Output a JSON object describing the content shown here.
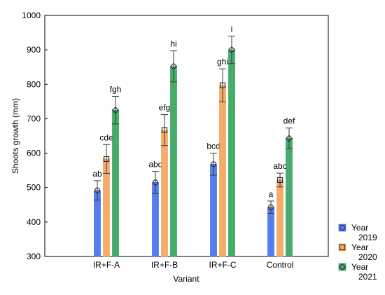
{
  "chart_data": {
    "type": "bar",
    "xlabel": "Variant",
    "ylabel": "Shoots growth (mm)",
    "ylim": [
      300,
      1000
    ],
    "yticks": [
      300,
      400,
      500,
      600,
      700,
      800,
      900,
      1000
    ],
    "grid": false,
    "legend_position": "right-bottom",
    "categories": [
      "IR+F-A",
      "IR+F-B",
      "IR+F-C",
      "Control"
    ],
    "series": [
      {
        "name": "Year 2019",
        "legend_lines": [
          "Year",
          "2019"
        ],
        "color": "#2f62ec",
        "marker": "circle",
        "values": [
          492,
          515,
          568,
          443
        ],
        "errors": [
          28,
          32,
          32,
          18
        ],
        "labels": [
          "ab",
          "abc",
          "bcd",
          "a"
        ]
      },
      {
        "name": "Year 2020",
        "legend_lines": [
          "Year",
          "2020"
        ],
        "color": "#f29a4a",
        "marker": "square",
        "values": [
          583,
          667,
          797,
          522
        ],
        "errors": [
          42,
          45,
          48,
          20
        ],
        "labels": [
          "cde",
          "efg",
          "ghi",
          "abc"
        ]
      },
      {
        "name": "Year 2021",
        "legend_lines": [
          "Year",
          "2021"
        ],
        "color": "#1f9a4a",
        "marker": "diamond",
        "values": [
          725,
          852,
          900,
          643
        ],
        "errors": [
          40,
          45,
          40,
          30
        ],
        "labels": [
          "fgh",
          "hi",
          "i",
          "def"
        ]
      }
    ]
  }
}
